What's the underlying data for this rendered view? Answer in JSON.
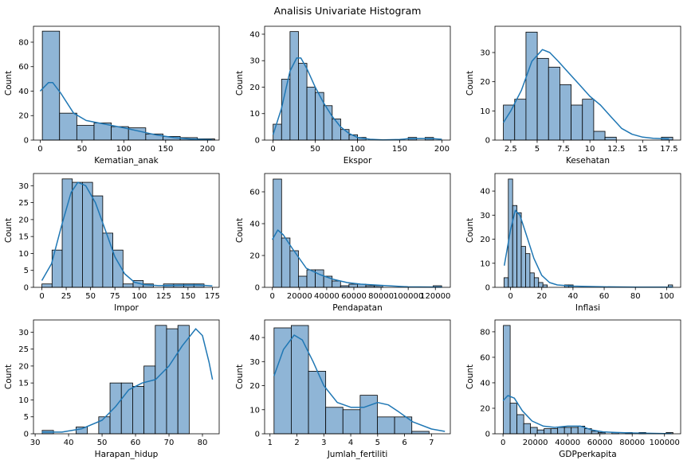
{
  "suptitle": "Analisis Univariate Histogram",
  "colors": {
    "bar_fill": "#8fb5d6",
    "bar_edge": "#000000",
    "kde_line": "#1f77b4"
  },
  "chart_data": [
    {
      "type": "bar",
      "xlabel": "Kematian_anak",
      "ylabel": "Count",
      "xlim": [
        -8,
        214
      ],
      "ylim": [
        0,
        93
      ],
      "xticks": [
        0,
        50,
        100,
        150,
        200
      ],
      "yticks": [
        0,
        20,
        40,
        60,
        80
      ],
      "bin_start": 2.6,
      "bin_width": 20.6,
      "counts": [
        89,
        22,
        12,
        14,
        11,
        10,
        5,
        3,
        2,
        1
      ],
      "kde": [
        [
          0,
          40
        ],
        [
          10,
          47
        ],
        [
          15,
          47
        ],
        [
          25,
          38
        ],
        [
          40,
          22
        ],
        [
          55,
          16
        ],
        [
          70,
          14
        ],
        [
          85,
          12
        ],
        [
          100,
          10
        ],
        [
          120,
          7
        ],
        [
          140,
          4
        ],
        [
          160,
          2
        ],
        [
          180,
          0.8
        ],
        [
          205,
          0.3
        ]
      ]
    },
    {
      "type": "bar",
      "xlabel": "Ekspor",
      "ylabel": "Count",
      "xlim": [
        -10,
        210
      ],
      "ylim": [
        0,
        43
      ],
      "xticks": [
        0,
        50,
        100,
        150,
        200
      ],
      "yticks": [
        0,
        10,
        20,
        30,
        40
      ],
      "bin_start": 0.1,
      "bin_width": 10,
      "counts": [
        6,
        23,
        41,
        29,
        20,
        18,
        13,
        8,
        4,
        2,
        1,
        0,
        0,
        0,
        0,
        0,
        1,
        0,
        1,
        0
      ],
      "kde": [
        [
          0,
          2
        ],
        [
          10,
          12
        ],
        [
          20,
          26
        ],
        [
          28,
          31
        ],
        [
          33,
          31
        ],
        [
          40,
          27
        ],
        [
          50,
          20
        ],
        [
          60,
          14
        ],
        [
          70,
          9
        ],
        [
          80,
          5
        ],
        [
          90,
          2.5
        ],
        [
          100,
          1
        ],
        [
          115,
          0.3
        ],
        [
          130,
          0.1
        ],
        [
          150,
          0.2
        ],
        [
          160,
          0.5
        ],
        [
          175,
          0.6
        ],
        [
          190,
          0.5
        ],
        [
          200,
          0.3
        ]
      ]
    },
    {
      "type": "bar",
      "xlabel": "Kesehatan",
      "ylabel": "Count",
      "xlim": [
        1,
        18.6
      ],
      "ylim": [
        0,
        39
      ],
      "xticks": [
        2.5,
        5.0,
        7.5,
        10.0,
        12.5,
        15.0,
        17.5
      ],
      "yticks": [
        0,
        10,
        20,
        30
      ],
      "bin_start": 1.8,
      "bin_width": 1.07,
      "counts": [
        12,
        14,
        37,
        28,
        25,
        19,
        12,
        14,
        3,
        1,
        0,
        0,
        0,
        0,
        1
      ],
      "kde": [
        [
          1.8,
          6
        ],
        [
          2.5,
          10
        ],
        [
          3.5,
          17
        ],
        [
          4.5,
          27
        ],
        [
          5.5,
          31
        ],
        [
          6.2,
          30
        ],
        [
          7,
          27
        ],
        [
          8,
          23
        ],
        [
          9,
          19
        ],
        [
          10,
          15
        ],
        [
          11,
          12
        ],
        [
          12,
          8
        ],
        [
          13,
          4
        ],
        [
          14,
          2
        ],
        [
          15,
          1
        ],
        [
          16,
          0.6
        ],
        [
          17.5,
          0.4
        ]
      ]
    },
    {
      "type": "bar",
      "xlabel": "Impor",
      "ylabel": "Count",
      "xlim": [
        -8.6,
        182
      ],
      "ylim": [
        0,
        33.6
      ],
      "xticks": [
        0,
        25,
        50,
        75,
        100,
        125,
        150,
        175
      ],
      "yticks": [
        0,
        5,
        10,
        15,
        20,
        25,
        30
      ],
      "bin_start": 0.07,
      "bin_width": 10.4,
      "counts": [
        1,
        11,
        32,
        31,
        31,
        27,
        16,
        11,
        1,
        2,
        1,
        0,
        1,
        1,
        1,
        1
      ],
      "kde": [
        [
          0,
          2
        ],
        [
          10,
          7
        ],
        [
          20,
          18
        ],
        [
          30,
          28
        ],
        [
          37,
          31
        ],
        [
          45,
          30
        ],
        [
          55,
          25
        ],
        [
          65,
          17
        ],
        [
          75,
          9
        ],
        [
          85,
          4
        ],
        [
          95,
          1.5
        ],
        [
          105,
          0.8
        ],
        [
          120,
          0.5
        ],
        [
          140,
          0.6
        ],
        [
          160,
          0.7
        ],
        [
          175,
          0.4
        ]
      ]
    },
    {
      "type": "bar",
      "xlabel": "Pendapatan",
      "ylabel": "Count",
      "xlim": [
        -5700,
        131000
      ],
      "ylim": [
        0,
        71.5
      ],
      "xticks": [
        0,
        20000,
        40000,
        60000,
        80000,
        100000,
        120000
      ],
      "yticks": [
        0,
        20,
        40,
        60
      ],
      "bin_start": 600,
      "bin_width": 6200,
      "counts": [
        68,
        31,
        23,
        7,
        11,
        11,
        7,
        4,
        1,
        2,
        2,
        1,
        1,
        0,
        0,
        0,
        0,
        0,
        0,
        1
      ],
      "kde": [
        [
          0,
          30
        ],
        [
          4000,
          36
        ],
        [
          8000,
          33
        ],
        [
          15000,
          24
        ],
        [
          25000,
          12
        ],
        [
          35000,
          8
        ],
        [
          45000,
          5
        ],
        [
          55000,
          3
        ],
        [
          65000,
          2
        ],
        [
          75000,
          1.5
        ],
        [
          85000,
          1
        ],
        [
          100000,
          0.3
        ],
        [
          125000,
          0.1
        ]
      ]
    },
    {
      "type": "bar",
      "xlabel": "Inflasi",
      "ylabel": "Count",
      "xlim": [
        -10,
        109
      ],
      "ylim": [
        0,
        47.3
      ],
      "xticks": [
        0,
        20,
        40,
        60,
        80,
        100
      ],
      "yticks": [
        0,
        10,
        20,
        30,
        40
      ],
      "bin_start": -4.2,
      "bin_width": 2.77,
      "counts": [
        4,
        45,
        34,
        31,
        17,
        14,
        6,
        4,
        2,
        1,
        0,
        0,
        0,
        0,
        1,
        1,
        0,
        0,
        0,
        0,
        0,
        0,
        0,
        0,
        0,
        0,
        0,
        0,
        0,
        0,
        0,
        0,
        0,
        0,
        0,
        0,
        0,
        0,
        1
      ],
      "kde": [
        [
          -4,
          9
        ],
        [
          0,
          24
        ],
        [
          3,
          32
        ],
        [
          6,
          30
        ],
        [
          10,
          22
        ],
        [
          15,
          12
        ],
        [
          20,
          5
        ],
        [
          25,
          2
        ],
        [
          30,
          1
        ],
        [
          40,
          0.5
        ],
        [
          60,
          0.2
        ],
        [
          80,
          0.1
        ],
        [
          104,
          0.1
        ]
      ]
    },
    {
      "type": "bar",
      "xlabel": "Harapan_hidup",
      "ylabel": "Count",
      "xlim": [
        29.5,
        85
      ],
      "ylim": [
        0,
        33.6
      ],
      "xticks": [
        30,
        40,
        50,
        60,
        70,
        80
      ],
      "yticks": [
        0,
        5,
        10,
        15,
        20,
        25,
        30
      ],
      "bin_start": 32.1,
      "bin_width": 3.38,
      "counts": [
        1,
        0,
        0,
        2,
        0,
        5,
        15,
        15,
        14,
        20,
        32,
        31,
        32
      ],
      "kde": [
        [
          32,
          0.5
        ],
        [
          38,
          0.5
        ],
        [
          44,
          1.5
        ],
        [
          50,
          4
        ],
        [
          54,
          8
        ],
        [
          58,
          13
        ],
        [
          62,
          15
        ],
        [
          66,
          16
        ],
        [
          70,
          20
        ],
        [
          74,
          26
        ],
        [
          78,
          31
        ],
        [
          80,
          29
        ],
        [
          82,
          21
        ],
        [
          83,
          16
        ]
      ]
    },
    {
      "type": "bar",
      "xlabel": "Jumlah_fertiliti",
      "ylabel": "Count",
      "xlim": [
        0.8,
        7.7
      ],
      "ylim": [
        0,
        47.3
      ],
      "xticks": [
        1,
        2,
        3,
        4,
        5,
        6,
        7
      ],
      "yticks": [
        0,
        10,
        20,
        30,
        40
      ],
      "bin_start": 1.15,
      "bin_width": 0.64,
      "counts": [
        44,
        45,
        26,
        11,
        10,
        16,
        7,
        7,
        1
      ],
      "kde": [
        [
          1.15,
          24
        ],
        [
          1.5,
          35
        ],
        [
          1.9,
          41
        ],
        [
          2.2,
          39
        ],
        [
          2.6,
          30
        ],
        [
          3,
          20
        ],
        [
          3.5,
          13
        ],
        [
          4,
          11
        ],
        [
          4.5,
          11
        ],
        [
          5,
          13
        ],
        [
          5.4,
          12
        ],
        [
          5.8,
          9
        ],
        [
          6.3,
          5
        ],
        [
          7,
          2
        ],
        [
          7.5,
          1
        ]
      ]
    },
    {
      "type": "bar",
      "xlabel": "GDPperkapita",
      "ylabel": "Count",
      "xlim": [
        -5000,
        110000
      ],
      "ylim": [
        0,
        89.3
      ],
      "xticks": [
        0,
        20000,
        40000,
        60000,
        80000,
        100000
      ],
      "yticks": [
        0,
        20,
        40,
        60,
        80
      ],
      "bin_start": 231,
      "bin_width": 4200,
      "counts": [
        85,
        24,
        15,
        8,
        5,
        3,
        4,
        4,
        5,
        5,
        5,
        6,
        4,
        2,
        1,
        0,
        1,
        0,
        1,
        0,
        1,
        0,
        0,
        0,
        1
      ],
      "kde": [
        [
          0,
          26
        ],
        [
          3000,
          30
        ],
        [
          7000,
          28
        ],
        [
          12000,
          18
        ],
        [
          18000,
          10
        ],
        [
          25000,
          6
        ],
        [
          32000,
          5
        ],
        [
          40000,
          6
        ],
        [
          48000,
          6
        ],
        [
          55000,
          3
        ],
        [
          62000,
          1.5
        ],
        [
          70000,
          1
        ],
        [
          80000,
          0.6
        ],
        [
          90000,
          0.4
        ],
        [
          100000,
          0.2
        ],
        [
          104000,
          0.1
        ]
      ]
    }
  ]
}
